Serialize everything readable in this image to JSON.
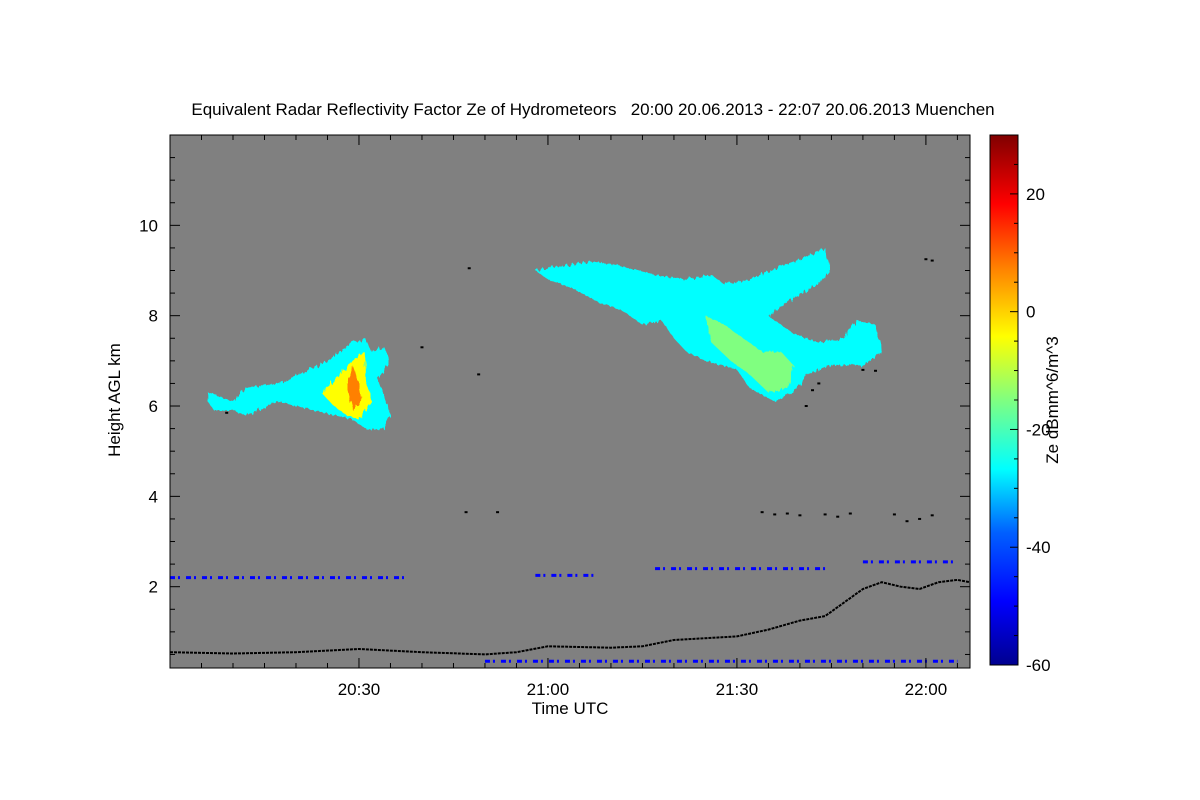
{
  "chart_data": {
    "type": "heatmap",
    "title": "Equivalent Radar Reflectivity Factor Ze of Hydrometeors   20:00 20.06.2013 - 22:07 20.06.2013 Muenchen",
    "xlabel": "Time UTC",
    "ylabel": "Height AGL km",
    "colorbar_label": "Ze dBmm^6/m^3",
    "x_start": "20:00",
    "x_end": "22:07",
    "xlim_minutes": [
      0,
      127
    ],
    "ylim": [
      0.2,
      12
    ],
    "x_ticks": [
      {
        "minutes": 30,
        "label": "20:30"
      },
      {
        "minutes": 60,
        "label": "21:00"
      },
      {
        "minutes": 90,
        "label": "21:30"
      },
      {
        "minutes": 120,
        "label": "22:00"
      }
    ],
    "y_ticks": [
      {
        "value": 2,
        "label": "2"
      },
      {
        "value": 4,
        "label": "4"
      },
      {
        "value": 6,
        "label": "6"
      },
      {
        "value": 8,
        "label": "8"
      },
      {
        "value": 10,
        "label": "10"
      }
    ],
    "colorbar_range": [
      -60,
      30
    ],
    "colorbar_ticks": [
      {
        "value": 20,
        "label": "20"
      },
      {
        "value": 0,
        "label": "0"
      },
      {
        "value": -20,
        "label": "-20"
      },
      {
        "value": -40,
        "label": "-40"
      },
      {
        "value": -60,
        "label": "-60"
      }
    ],
    "colormap": [
      "#00008f",
      "#0000ff",
      "#0080ff",
      "#00ffff",
      "#80ff80",
      "#ffff00",
      "#ff8000",
      "#ff0000",
      "#800000"
    ],
    "background_color": "#808080",
    "echo_regions": [
      {
        "name": "cloud-1",
        "outline": [
          [
            6,
            6.3
          ],
          [
            8,
            6.2
          ],
          [
            10,
            6.1
          ],
          [
            12,
            6.4
          ],
          [
            17,
            6.5
          ],
          [
            19,
            6.6
          ],
          [
            22,
            6.8
          ],
          [
            25,
            7.0
          ],
          [
            27,
            7.2
          ],
          [
            29,
            7.4
          ],
          [
            31,
            7.5
          ],
          [
            32,
            7.2
          ],
          [
            34,
            7.3
          ],
          [
            35,
            7.0
          ],
          [
            33,
            6.6
          ],
          [
            34,
            6.2
          ],
          [
            35,
            5.8
          ],
          [
            34,
            5.5
          ],
          [
            31,
            5.5
          ],
          [
            29,
            5.7
          ],
          [
            26,
            5.8
          ],
          [
            23,
            5.9
          ],
          [
            20,
            6.0
          ],
          [
            17,
            6.1
          ],
          [
            14,
            5.9
          ],
          [
            12,
            5.8
          ],
          [
            10,
            5.9
          ],
          [
            7,
            5.9
          ],
          [
            6,
            6.1
          ]
        ],
        "ze_dbz": -25
      },
      {
        "name": "cloud-1-core",
        "outline": [
          [
            24,
            6.3
          ],
          [
            27,
            6.7
          ],
          [
            29,
            7.0
          ],
          [
            31,
            7.2
          ],
          [
            31,
            6.6
          ],
          [
            32,
            6.1
          ],
          [
            30,
            5.7
          ],
          [
            28,
            5.8
          ],
          [
            26,
            6.0
          ]
        ],
        "ze_dbz": -2
      },
      {
        "name": "cloud-1-peak",
        "outline": [
          [
            28,
            6.5
          ],
          [
            29,
            6.9
          ],
          [
            30,
            6.5
          ],
          [
            30.5,
            6.1
          ],
          [
            29,
            5.9
          ]
        ],
        "ze_dbz": 8
      },
      {
        "name": "cloud-2",
        "outline": [
          [
            58,
            9.0
          ],
          [
            62,
            9.1
          ],
          [
            67,
            9.2
          ],
          [
            72,
            9.1
          ],
          [
            77,
            8.9
          ],
          [
            82,
            8.8
          ],
          [
            86,
            8.9
          ],
          [
            88,
            8.7
          ],
          [
            92,
            8.8
          ],
          [
            97,
            9.1
          ],
          [
            101,
            9.3
          ],
          [
            104,
            9.5
          ],
          [
            105,
            9.0
          ],
          [
            103,
            8.7
          ],
          [
            99,
            8.4
          ],
          [
            95,
            8.0
          ],
          [
            99,
            7.6
          ],
          [
            103,
            7.4
          ],
          [
            107,
            7.5
          ],
          [
            109,
            7.9
          ],
          [
            112,
            7.8
          ],
          [
            113,
            7.2
          ],
          [
            110,
            6.9
          ],
          [
            105,
            6.9
          ],
          [
            101,
            6.7
          ],
          [
            99,
            6.3
          ],
          [
            96,
            6.1
          ],
          [
            92,
            6.4
          ],
          [
            90,
            6.8
          ],
          [
            85,
            7.0
          ],
          [
            82,
            7.2
          ],
          [
            80,
            7.5
          ],
          [
            78,
            7.9
          ],
          [
            75,
            7.8
          ],
          [
            72,
            8.1
          ],
          [
            68,
            8.3
          ],
          [
            64,
            8.6
          ],
          [
            60,
            8.8
          ]
        ],
        "ze_dbz": -25
      },
      {
        "name": "cloud-2-core",
        "outline": [
          [
            85,
            8.0
          ],
          [
            88,
            7.8
          ],
          [
            91,
            7.5
          ],
          [
            94,
            7.2
          ],
          [
            97,
            7.2
          ],
          [
            99,
            6.9
          ],
          [
            98,
            6.4
          ],
          [
            95,
            6.3
          ],
          [
            92,
            6.7
          ],
          [
            89,
            7.0
          ],
          [
            86,
            7.4
          ]
        ],
        "ze_dbz": -12
      }
    ],
    "weak_echo_bands": [
      {
        "x_min": [
          0,
          38
        ],
        "height_km": 2.2,
        "ze_dbz": -45
      },
      {
        "x_min": [
          58,
          68
        ],
        "height_km": 2.25,
        "ze_dbz": -45
      },
      {
        "x_min": [
          77,
          104
        ],
        "height_km": 2.4,
        "ze_dbz": -45
      },
      {
        "x_min": [
          110,
          125
        ],
        "height_km": 2.55,
        "ze_dbz": -45
      },
      {
        "x_min": [
          50,
          125
        ],
        "height_km": 0.35,
        "ze_dbz": -45
      }
    ],
    "boundary_layer_trace": {
      "x_min": [
        0,
        10,
        20,
        30,
        40,
        50,
        55,
        60,
        70,
        75,
        80,
        90,
        95,
        100,
        104,
        110,
        113,
        116,
        119,
        122,
        125,
        127
      ],
      "height_km": [
        0.55,
        0.52,
        0.55,
        0.62,
        0.55,
        0.5,
        0.55,
        0.68,
        0.65,
        0.68,
        0.82,
        0.9,
        1.05,
        1.25,
        1.35,
        1.95,
        2.1,
        2.0,
        1.95,
        2.1,
        2.15,
        2.1
      ]
    },
    "scattered_points": [
      {
        "x_min": 9,
        "y_km": 5.85
      },
      {
        "x_min": 47,
        "y_km": 3.65
      },
      {
        "x_min": 52,
        "y_km": 3.65
      },
      {
        "x_min": 94,
        "y_km": 3.65
      },
      {
        "x_min": 96,
        "y_km": 3.6
      },
      {
        "x_min": 98,
        "y_km": 3.62
      },
      {
        "x_min": 100,
        "y_km": 3.58
      },
      {
        "x_min": 104,
        "y_km": 3.6
      },
      {
        "x_min": 106,
        "y_km": 3.55
      },
      {
        "x_min": 108,
        "y_km": 3.62
      },
      {
        "x_min": 115,
        "y_km": 3.6
      },
      {
        "x_min": 117,
        "y_km": 3.45
      },
      {
        "x_min": 119,
        "y_km": 3.5
      },
      {
        "x_min": 121,
        "y_km": 3.58
      },
      {
        "x_min": 101,
        "y_km": 6.0
      },
      {
        "x_min": 102,
        "y_km": 6.35
      },
      {
        "x_min": 103,
        "y_km": 6.5
      },
      {
        "x_min": 110,
        "y_km": 6.8
      },
      {
        "x_min": 112,
        "y_km": 6.78
      },
      {
        "x_min": 120,
        "y_km": 9.25
      },
      {
        "x_min": 121,
        "y_km": 9.22
      },
      {
        "x_min": 47.5,
        "y_km": 9.05
      },
      {
        "x_min": 40,
        "y_km": 7.3
      },
      {
        "x_min": 49,
        "y_km": 6.7
      }
    ]
  }
}
